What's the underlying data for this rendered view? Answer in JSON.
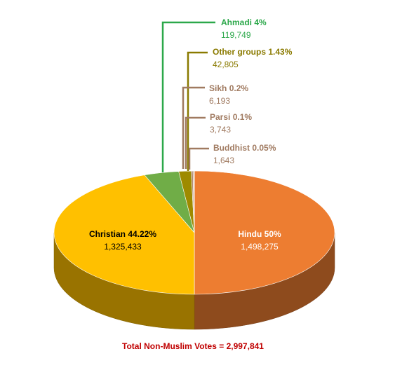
{
  "chart_data": {
    "type": "pie3d",
    "categories": [
      "Hindu",
      "Christian",
      "Ahmadi",
      "Other groups",
      "Sikh",
      "Parsi",
      "Buddhist"
    ],
    "values": [
      50,
      44.22,
      4,
      1.43,
      0.2,
      0.1,
      0.05
    ],
    "value_labels": [
      "50%",
      "44.22%",
      "4%",
      "1.43%",
      "0.2%",
      "0.1%",
      "0.05%"
    ],
    "counts": [
      1498275,
      1325433,
      119749,
      42805,
      6193,
      3743,
      1643
    ],
    "count_labels": [
      "1,498,275",
      "1,325,433",
      "119,749",
      "42,805",
      "6,193",
      "3,743",
      "1,643"
    ],
    "colors": [
      "#ed7d31",
      "#ffc000",
      "#70ad47",
      "#9e8a00",
      "#b0866a",
      "#a47a5c",
      "#b58a3e"
    ],
    "footer": "Total Non-Muslim Votes = 2,997,841"
  }
}
